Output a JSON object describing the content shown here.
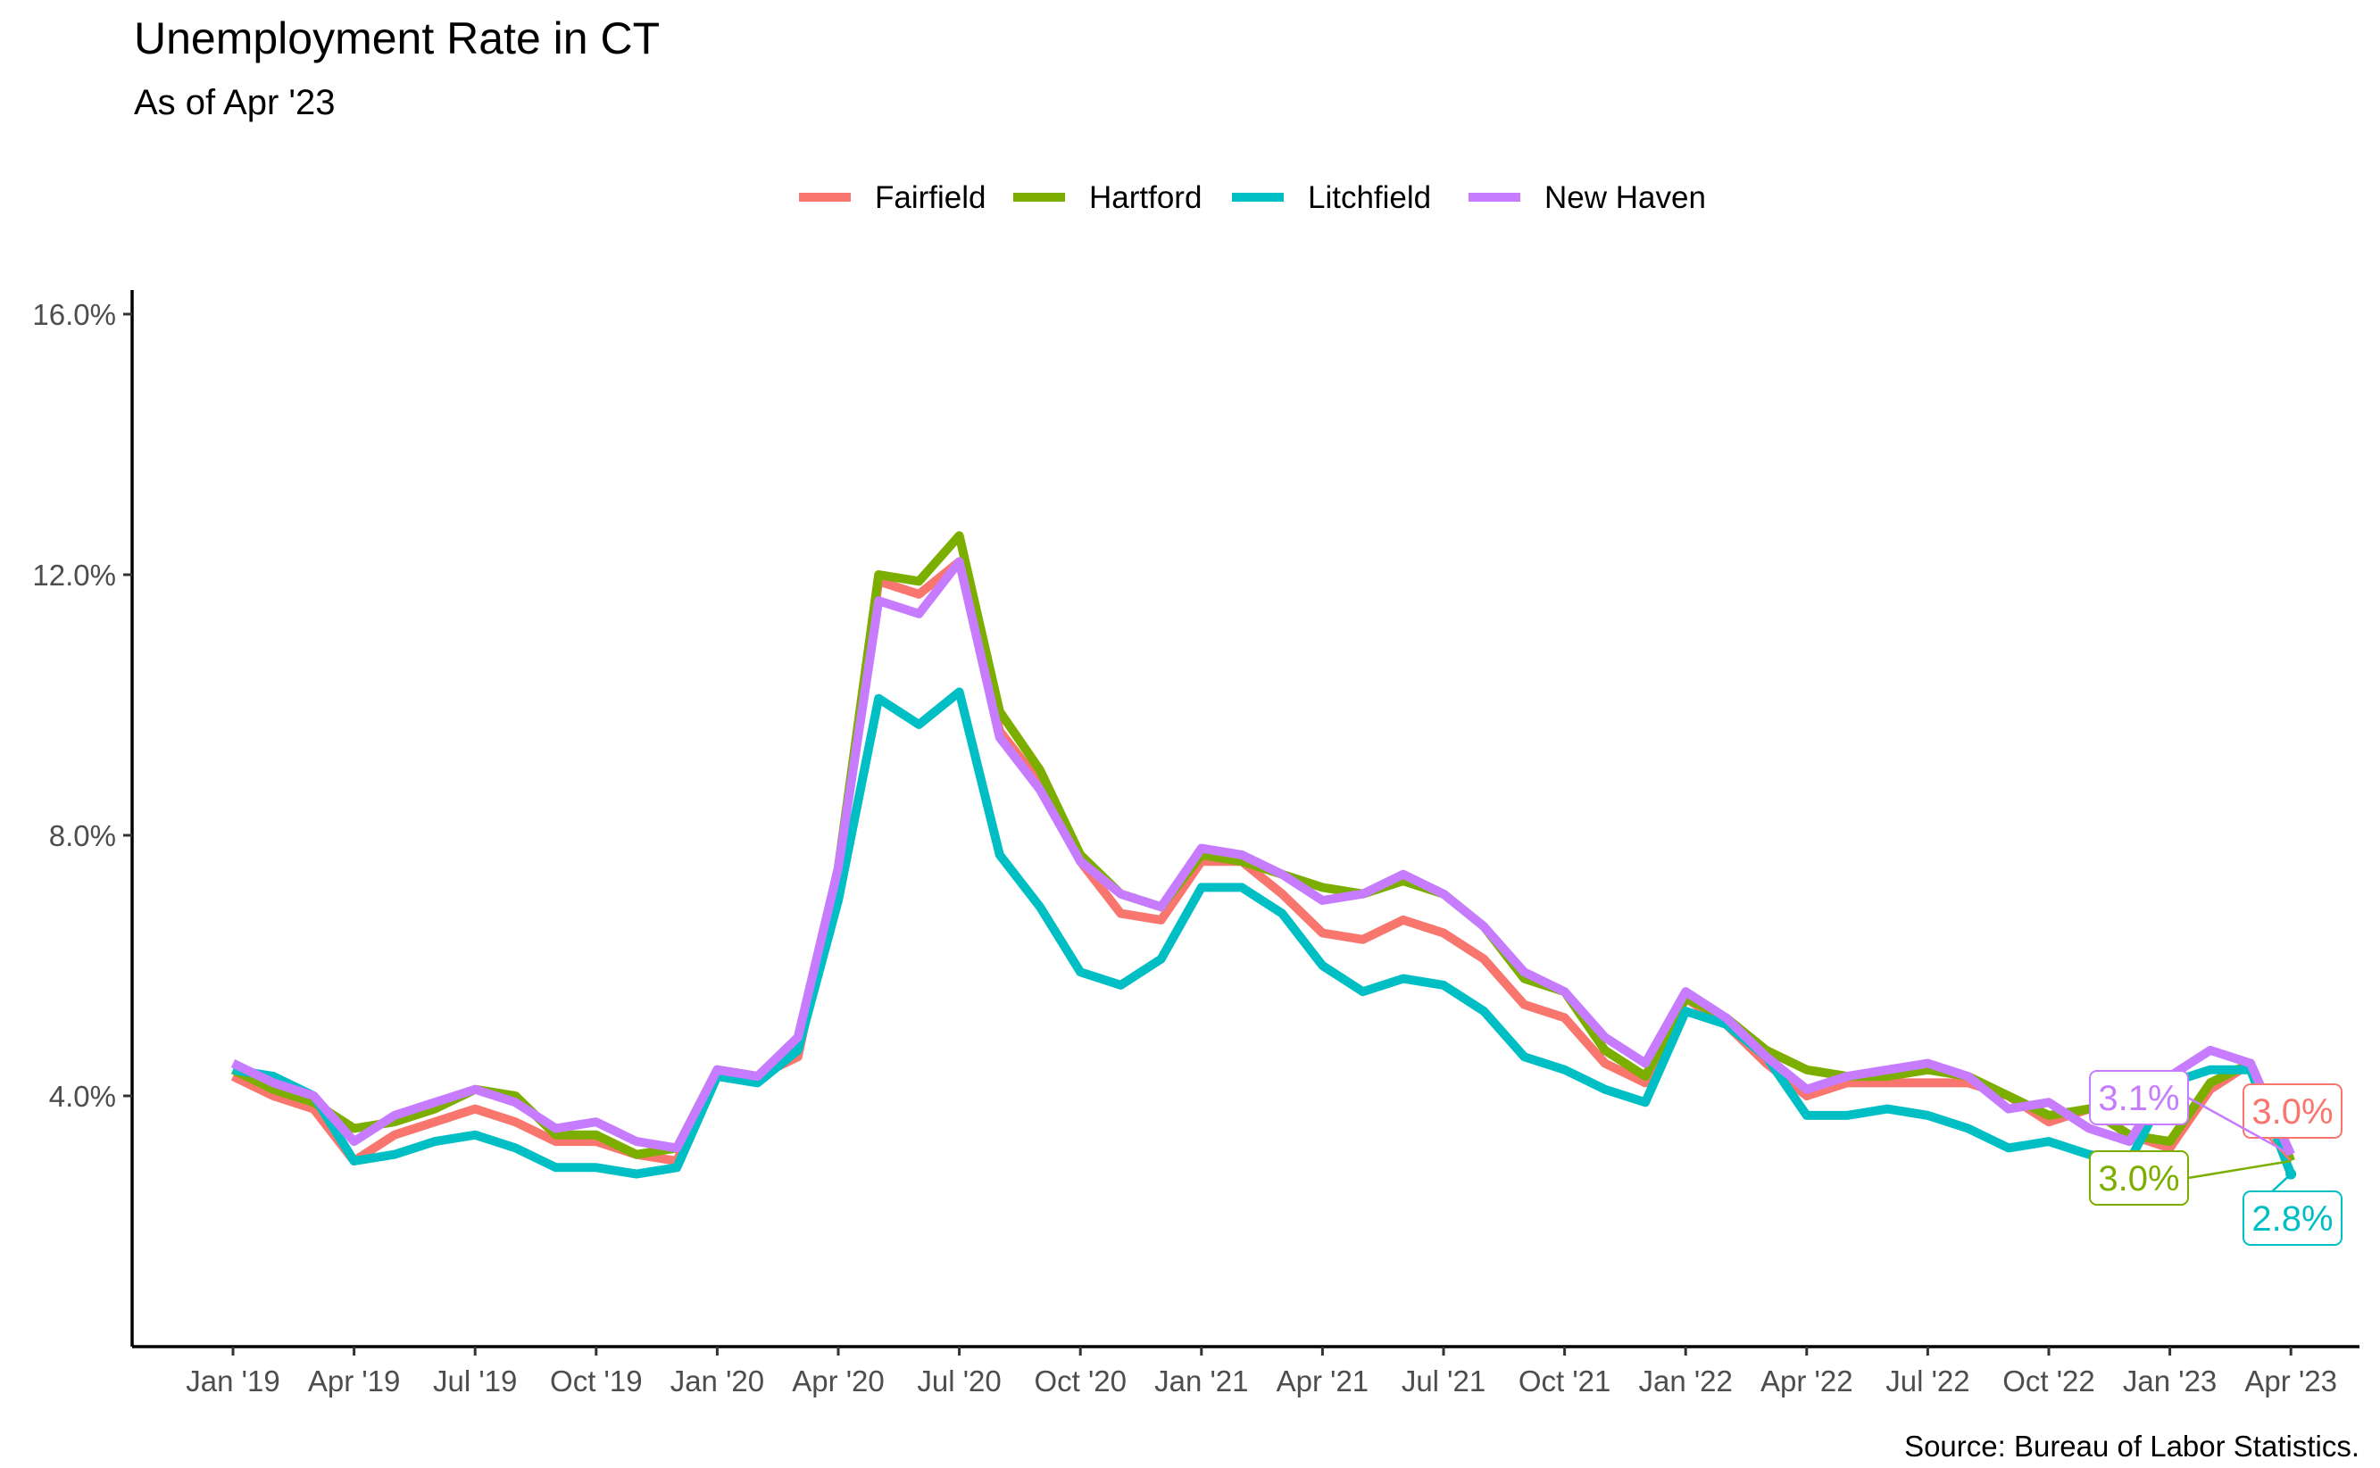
{
  "chart_data": {
    "type": "line",
    "title": "Unemployment Rate in CT",
    "subtitle": "As of Apr '23",
    "caption": "Source: Bureau of Labor Statistics.",
    "xlabel": "",
    "ylabel": "",
    "ylim": [
      0,
      16.0
    ],
    "y_ticks": [
      4.0,
      8.0,
      12.0,
      16.0
    ],
    "y_tick_labels": [
      "4.0%",
      "8.0%",
      "12.0%",
      "16.0%"
    ],
    "x_tick_labels": [
      "Jan '19",
      "Apr '19",
      "Jul '19",
      "Oct '19",
      "Jan '20",
      "Apr '20",
      "Jul '20",
      "Oct '20",
      "Jan '21",
      "Apr '21",
      "Jul '21",
      "Oct '21",
      "Jan '22",
      "Apr '22",
      "Jul '22",
      "Oct '22",
      "Jan '23",
      "Apr '23"
    ],
    "x": [
      "2019-01",
      "2019-02",
      "2019-03",
      "2019-04",
      "2019-05",
      "2019-06",
      "2019-07",
      "2019-08",
      "2019-09",
      "2019-10",
      "2019-11",
      "2019-12",
      "2020-01",
      "2020-02",
      "2020-03",
      "2020-04",
      "2020-05",
      "2020-06",
      "2020-07",
      "2020-08",
      "2020-09",
      "2020-10",
      "2020-11",
      "2020-12",
      "2021-01",
      "2021-02",
      "2021-03",
      "2021-04",
      "2021-05",
      "2021-06",
      "2021-07",
      "2021-08",
      "2021-09",
      "2021-10",
      "2021-11",
      "2021-12",
      "2022-01",
      "2022-02",
      "2022-03",
      "2022-04",
      "2022-05",
      "2022-06",
      "2022-07",
      "2022-08",
      "2022-09",
      "2022-10",
      "2022-11",
      "2022-12",
      "2023-01",
      "2023-02",
      "2023-03",
      "2023-04"
    ],
    "legend_position": "top",
    "grid": false,
    "series": [
      {
        "name": "Fairfield",
        "color": "#F8766D",
        "end_label": "3.0%",
        "values": [
          4.3,
          4.0,
          3.8,
          3.0,
          3.4,
          3.6,
          3.8,
          3.6,
          3.3,
          3.3,
          3.1,
          3.0,
          4.4,
          4.3,
          4.6,
          7.5,
          11.9,
          11.7,
          12.2,
          9.6,
          8.8,
          7.6,
          6.8,
          6.7,
          7.6,
          7.6,
          7.1,
          6.5,
          6.4,
          6.7,
          6.5,
          6.1,
          5.4,
          5.2,
          4.5,
          4.2,
          5.5,
          5.1,
          4.5,
          4.0,
          4.2,
          4.2,
          4.2,
          4.2,
          4.0,
          3.6,
          3.8,
          3.4,
          3.2,
          4.1,
          4.5,
          3.0
        ]
      },
      {
        "name": "Hartford",
        "color": "#7CAE00",
        "end_label": "3.0%",
        "values": [
          4.4,
          4.1,
          3.9,
          3.5,
          3.6,
          3.8,
          4.1,
          4.0,
          3.4,
          3.4,
          3.1,
          3.2,
          4.4,
          4.3,
          4.7,
          7.5,
          12.0,
          11.9,
          12.6,
          9.9,
          9.0,
          7.7,
          7.1,
          6.9,
          7.7,
          7.6,
          7.4,
          7.2,
          7.1,
          7.3,
          7.1,
          6.6,
          5.8,
          5.6,
          4.7,
          4.3,
          5.5,
          5.2,
          4.7,
          4.4,
          4.3,
          4.3,
          4.4,
          4.3,
          4.0,
          3.7,
          3.8,
          3.4,
          3.3,
          4.2,
          4.5,
          3.0
        ]
      },
      {
        "name": "Litchfield",
        "color": "#00BFC4",
        "end_label": "2.8%",
        "values": [
          4.4,
          4.3,
          4.0,
          3.0,
          3.1,
          3.3,
          3.4,
          3.2,
          2.9,
          2.9,
          2.8,
          2.9,
          4.3,
          4.2,
          4.7,
          7.0,
          10.1,
          9.7,
          10.2,
          7.7,
          6.9,
          5.9,
          5.7,
          6.1,
          7.2,
          7.2,
          6.8,
          6.0,
          5.6,
          5.8,
          5.7,
          5.3,
          4.6,
          4.4,
          4.1,
          3.9,
          5.3,
          5.1,
          4.6,
          3.7,
          3.7,
          3.8,
          3.7,
          3.5,
          3.2,
          3.3,
          3.1,
          3.0,
          4.2,
          4.4,
          4.4,
          2.8
        ]
      },
      {
        "name": "New Haven",
        "color": "#C77CFF",
        "end_label": "3.1%",
        "values": [
          4.5,
          4.2,
          4.0,
          3.3,
          3.7,
          3.9,
          4.1,
          3.9,
          3.5,
          3.6,
          3.3,
          3.2,
          4.4,
          4.3,
          4.9,
          7.5,
          11.6,
          11.4,
          12.2,
          9.5,
          8.7,
          7.6,
          7.1,
          6.9,
          7.8,
          7.7,
          7.4,
          7.0,
          7.1,
          7.4,
          7.1,
          6.6,
          5.9,
          5.6,
          4.9,
          4.5,
          5.6,
          5.2,
          4.6,
          4.1,
          4.3,
          4.4,
          4.5,
          4.3,
          3.8,
          3.9,
          3.5,
          3.3,
          4.3,
          4.7,
          4.5,
          3.1
        ]
      }
    ]
  }
}
